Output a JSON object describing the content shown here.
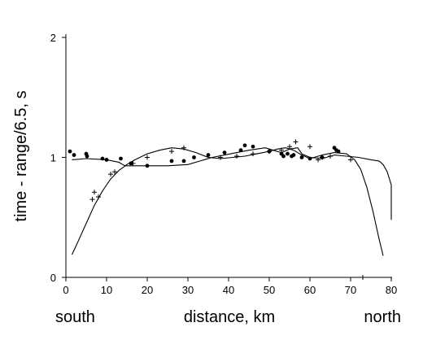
{
  "chart_data": {
    "type": "scatter",
    "xlabel": "distance, km",
    "ylabel": "time - range/6.5, s",
    "xlim": [
      0,
      80
    ],
    "ylim": [
      0,
      2
    ],
    "x_ticks": [
      "0",
      "10",
      "20",
      "30",
      "40",
      "50",
      "60",
      "70",
      "80"
    ],
    "y_ticks": [
      "0",
      "1",
      "2"
    ],
    "x_end_labels": {
      "left": "south",
      "right": "north"
    },
    "grid": false,
    "legend": "none",
    "series": [
      {
        "marker": "dot",
        "points": [
          [
            1,
            1.05
          ],
          [
            2,
            1.02
          ],
          [
            5,
            1.03
          ],
          [
            5.2,
            1.01
          ],
          [
            9,
            0.99
          ],
          [
            10,
            0.98
          ],
          [
            13.5,
            0.99
          ],
          [
            16,
            0.95
          ],
          [
            20,
            0.93
          ],
          [
            26,
            0.97
          ],
          [
            29,
            0.97
          ],
          [
            31.5,
            1.0
          ],
          [
            35,
            1.02
          ],
          [
            39,
            1.04
          ],
          [
            43,
            1.06
          ],
          [
            44,
            1.1
          ],
          [
            46,
            1.09
          ],
          [
            50,
            1.05
          ],
          [
            53,
            1.03
          ],
          [
            53.5,
            1.01
          ],
          [
            54.5,
            1.03
          ],
          [
            55.5,
            1.01
          ],
          [
            56,
            1.02
          ],
          [
            58,
            1.0
          ],
          [
            60,
            0.99
          ],
          [
            63,
            1.0
          ],
          [
            66,
            1.08
          ],
          [
            66.5,
            1.06
          ],
          [
            67,
            1.05
          ]
        ]
      },
      {
        "marker": "plus",
        "points": [
          [
            6.5,
            0.65
          ],
          [
            7,
            0.71
          ],
          [
            8,
            0.67
          ],
          [
            11,
            0.86
          ],
          [
            12,
            0.88
          ],
          [
            16.5,
            0.95
          ],
          [
            20,
            1.0
          ],
          [
            26,
            1.05
          ],
          [
            29,
            1.08
          ],
          [
            38,
            1.0
          ],
          [
            42,
            1.01
          ],
          [
            46,
            1.03
          ],
          [
            50,
            1.05
          ],
          [
            53,
            1.06
          ],
          [
            55,
            1.09
          ],
          [
            56.5,
            1.13
          ],
          [
            60,
            1.09
          ],
          [
            62,
            0.98
          ],
          [
            63,
            1.0
          ],
          [
            65,
            1.01
          ],
          [
            70,
            0.98
          ],
          [
            73,
            0.0
          ]
        ]
      },
      {
        "marker": "line",
        "points": [
          [
            1.5,
            0.19
          ],
          [
            3,
            0.3
          ],
          [
            5,
            0.45
          ],
          [
            7,
            0.6
          ],
          [
            9,
            0.72
          ],
          [
            11,
            0.82
          ],
          [
            13,
            0.89
          ],
          [
            15,
            0.94
          ],
          [
            17,
            0.98
          ],
          [
            20,
            1.03
          ],
          [
            23,
            1.06
          ],
          [
            26,
            1.08
          ],
          [
            29,
            1.07
          ],
          [
            32,
            1.04
          ],
          [
            35,
            1.0
          ],
          [
            38,
            0.99
          ],
          [
            41,
            1.0
          ],
          [
            44,
            1.01
          ],
          [
            47,
            1.03
          ],
          [
            50,
            1.05
          ],
          [
            52,
            1.07
          ],
          [
            54,
            1.08
          ],
          [
            56,
            1.06
          ],
          [
            58,
            1.02
          ],
          [
            60,
            0.99
          ],
          [
            63,
            1.02
          ],
          [
            66,
            1.04
          ],
          [
            69,
            1.03
          ],
          [
            71,
            0.98
          ],
          [
            72.5,
            0.9
          ],
          [
            74,
            0.75
          ],
          [
            75.5,
            0.55
          ],
          [
            77,
            0.32
          ],
          [
            78,
            0.18
          ]
        ]
      },
      {
        "marker": "line",
        "points": [
          [
            1.5,
            0.98
          ],
          [
            5,
            0.99
          ],
          [
            10,
            0.98
          ],
          [
            13,
            0.96
          ],
          [
            14.5,
            0.93
          ],
          [
            17,
            0.93
          ],
          [
            20,
            0.93
          ],
          [
            25,
            0.93
          ],
          [
            30,
            0.94
          ],
          [
            33,
            0.97
          ],
          [
            36,
            1.0
          ],
          [
            39,
            1.02
          ],
          [
            42,
            1.04
          ],
          [
            45,
            1.06
          ],
          [
            47,
            1.07
          ],
          [
            49,
            1.08
          ],
          [
            51,
            1.06
          ],
          [
            53,
            1.04
          ],
          [
            55,
            1.07
          ],
          [
            57,
            1.08
          ],
          [
            58,
            1.03
          ],
          [
            60,
            1.0
          ],
          [
            63,
            0.99
          ],
          [
            66,
            1.02
          ],
          [
            69,
            1.01
          ],
          [
            72,
            1.0
          ],
          [
            75,
            0.98
          ],
          [
            77,
            0.97
          ],
          [
            78,
            0.94
          ],
          [
            79,
            0.88
          ],
          [
            80,
            0.77
          ],
          [
            80,
            0.48
          ]
        ]
      }
    ]
  }
}
